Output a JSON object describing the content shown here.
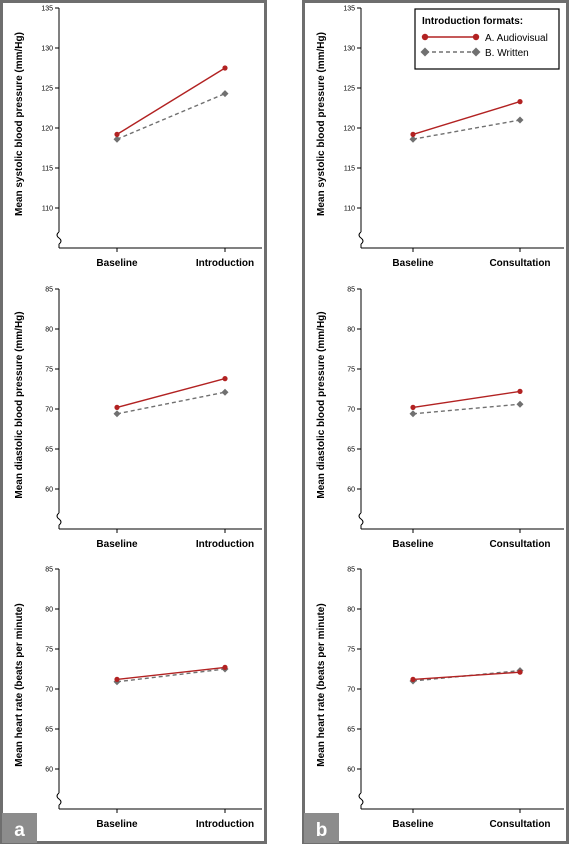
{
  "legend": {
    "title": "Introduction formats:",
    "items": [
      {
        "label": "A. Audiovisual",
        "color": "#b22222",
        "dash": "solid",
        "marker": "circle"
      },
      {
        "label": "B. Written",
        "color": "#707070",
        "dash": "dashed",
        "marker": "diamond"
      }
    ],
    "placement": "top-right of panel b"
  },
  "panels": [
    {
      "letter": "a"
    },
    {
      "letter": "b"
    }
  ],
  "chart_data": [
    {
      "type": "line",
      "panel": "a",
      "ylabel": "Mean systolic blood pressure (mm/Hg)",
      "categories": [
        "Baseline",
        "Introduction"
      ],
      "ylim": [
        105,
        135
      ],
      "yticks": [
        "110",
        "115",
        "120",
        "125",
        "130",
        "135"
      ],
      "series": [
        {
          "name": "A. Audiovisual",
          "values": [
            119.2,
            127.5
          ]
        },
        {
          "name": "B. Written",
          "values": [
            118.6,
            124.3
          ]
        }
      ]
    },
    {
      "type": "line",
      "panel": "b",
      "ylabel": "Mean systolic blood pressure (mm/Hg)",
      "categories": [
        "Baseline",
        "Consultation"
      ],
      "ylim": [
        105,
        135
      ],
      "yticks": [
        "110",
        "115",
        "120",
        "125",
        "130",
        "135"
      ],
      "series": [
        {
          "name": "A. Audiovisual",
          "values": [
            119.2,
            123.3
          ]
        },
        {
          "name": "B. Written",
          "values": [
            118.6,
            121.0
          ]
        }
      ]
    },
    {
      "type": "line",
      "panel": "a",
      "ylabel": "Mean diastolic blood pressure (mm/Hg)",
      "categories": [
        "Baseline",
        "Introduction"
      ],
      "ylim": [
        55,
        85
      ],
      "yticks": [
        "60",
        "65",
        "70",
        "75",
        "80",
        "85"
      ],
      "series": [
        {
          "name": "A. Audiovisual",
          "values": [
            70.2,
            73.8
          ]
        },
        {
          "name": "B. Written",
          "values": [
            69.4,
            72.1
          ]
        }
      ]
    },
    {
      "type": "line",
      "panel": "b",
      "ylabel": "Mean diastolic blood pressure (mm/Hg)",
      "categories": [
        "Baseline",
        "Consultation"
      ],
      "ylim": [
        55,
        85
      ],
      "yticks": [
        "60",
        "65",
        "70",
        "75",
        "80",
        "85"
      ],
      "series": [
        {
          "name": "A. Audiovisual",
          "values": [
            70.2,
            72.2
          ]
        },
        {
          "name": "B. Written",
          "values": [
            69.4,
            70.6
          ]
        }
      ]
    },
    {
      "type": "line",
      "panel": "a",
      "ylabel": "Mean heart rate (beats per minute)",
      "categories": [
        "Baseline",
        "Introduction"
      ],
      "ylim": [
        55,
        85
      ],
      "yticks": [
        "60",
        "65",
        "70",
        "75",
        "80",
        "85"
      ],
      "series": [
        {
          "name": "A. Audiovisual",
          "values": [
            71.2,
            72.7
          ]
        },
        {
          "name": "B. Written",
          "values": [
            70.9,
            72.5
          ]
        }
      ]
    },
    {
      "type": "line",
      "panel": "b",
      "ylabel": "Mean heart rate (beats per minute)",
      "categories": [
        "Baseline",
        "Consultation"
      ],
      "ylim": [
        55,
        85
      ],
      "yticks": [
        "60",
        "65",
        "70",
        "75",
        "80",
        "85"
      ],
      "series": [
        {
          "name": "A. Audiovisual",
          "values": [
            71.2,
            72.1
          ]
        },
        {
          "name": "B. Written",
          "values": [
            71.0,
            72.3
          ]
        }
      ]
    }
  ]
}
